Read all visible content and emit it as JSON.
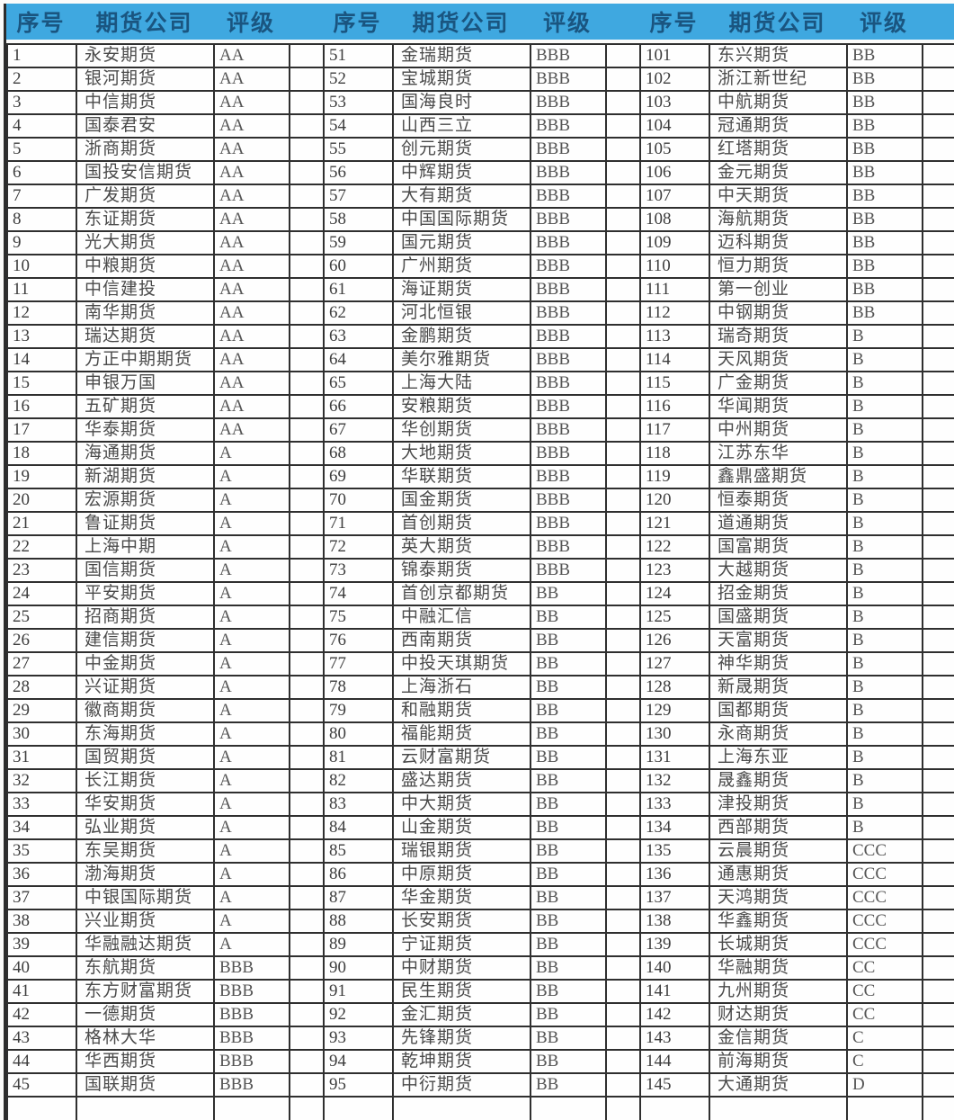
{
  "style": {
    "header_bg": "#3fa8e0",
    "header_text": "#1a5580",
    "grid_border": "#2f2f2f",
    "cell_text": "#454545"
  },
  "table": {
    "column_headers": [
      "序号",
      "期货公司",
      "评级"
    ],
    "groups": [
      {
        "rows": [
          [
            "1",
            "永安期货",
            "AA"
          ],
          [
            "2",
            "银河期货",
            "AA"
          ],
          [
            "3",
            "中信期货",
            "AA"
          ],
          [
            "4",
            "国泰君安",
            "AA"
          ],
          [
            "5",
            "浙商期货",
            "AA"
          ],
          [
            "6",
            "国投安信期货",
            "AA"
          ],
          [
            "7",
            "广发期货",
            "AA"
          ],
          [
            "8",
            "东证期货",
            "AA"
          ],
          [
            "9",
            "光大期货",
            "AA"
          ],
          [
            "10",
            "中粮期货",
            "AA"
          ],
          [
            "11",
            "中信建投",
            "AA"
          ],
          [
            "12",
            "南华期货",
            "AA"
          ],
          [
            "13",
            "瑞达期货",
            "AA"
          ],
          [
            "14",
            "方正中期期货",
            "AA"
          ],
          [
            "15",
            "申银万国",
            "AA"
          ],
          [
            "16",
            "五矿期货",
            "AA"
          ],
          [
            "17",
            "华泰期货",
            "AA"
          ],
          [
            "18",
            "海通期货",
            "A"
          ],
          [
            "19",
            "新湖期货",
            "A"
          ],
          [
            "20",
            "宏源期货",
            "A"
          ],
          [
            "21",
            "鲁证期货",
            "A"
          ],
          [
            "22",
            "上海中期",
            "A"
          ],
          [
            "23",
            "国信期货",
            "A"
          ],
          [
            "24",
            "平安期货",
            "A"
          ],
          [
            "25",
            "招商期货",
            "A"
          ],
          [
            "26",
            "建信期货",
            "A"
          ],
          [
            "27",
            "中金期货",
            "A"
          ],
          [
            "28",
            "兴证期货",
            "A"
          ],
          [
            "29",
            "徽商期货",
            "A"
          ],
          [
            "30",
            "东海期货",
            "A"
          ],
          [
            "31",
            "国贸期货",
            "A"
          ],
          [
            "32",
            "长江期货",
            "A"
          ],
          [
            "33",
            "华安期货",
            "A"
          ],
          [
            "34",
            "弘业期货",
            "A"
          ],
          [
            "35",
            "东吴期货",
            "A"
          ],
          [
            "36",
            "渤海期货",
            "A"
          ],
          [
            "37",
            "中银国际期货",
            "A"
          ],
          [
            "38",
            "兴业期货",
            "A"
          ],
          [
            "39",
            "华融融达期货",
            "A"
          ],
          [
            "40",
            "东航期货",
            "BBB"
          ],
          [
            "41",
            "东方财富期货",
            "BBB"
          ],
          [
            "42",
            "一德期货",
            "BBB"
          ],
          [
            "43",
            "格林大华",
            "BBB"
          ],
          [
            "44",
            "华西期货",
            "BBB"
          ],
          [
            "45",
            "国联期货",
            "BBB"
          ]
        ]
      },
      {
        "rows": [
          [
            "51",
            "金瑞期货",
            "BBB"
          ],
          [
            "52",
            "宝城期货",
            "BBB"
          ],
          [
            "53",
            "国海良时",
            "BBB"
          ],
          [
            "54",
            "山西三立",
            "BBB"
          ],
          [
            "55",
            "创元期货",
            "BBB"
          ],
          [
            "56",
            "中辉期货",
            "BBB"
          ],
          [
            "57",
            "大有期货",
            "BBB"
          ],
          [
            "58",
            "中国国际期货",
            "BBB"
          ],
          [
            "59",
            "国元期货",
            "BBB"
          ],
          [
            "60",
            "广州期货",
            "BBB"
          ],
          [
            "61",
            "海证期货",
            "BBB"
          ],
          [
            "62",
            "河北恒银",
            "BBB"
          ],
          [
            "63",
            "金鹏期货",
            "BBB"
          ],
          [
            "64",
            "美尔雅期货",
            "BBB"
          ],
          [
            "65",
            "上海大陆",
            "BBB"
          ],
          [
            "66",
            "安粮期货",
            "BBB"
          ],
          [
            "67",
            "华创期货",
            "BBB"
          ],
          [
            "68",
            "大地期货",
            "BBB"
          ],
          [
            "69",
            "华联期货",
            "BBB"
          ],
          [
            "70",
            "国金期货",
            "BBB"
          ],
          [
            "71",
            "首创期货",
            "BBB"
          ],
          [
            "72",
            "英大期货",
            "BBB"
          ],
          [
            "73",
            "锦泰期货",
            "BBB"
          ],
          [
            "74",
            "首创京都期货",
            "BB"
          ],
          [
            "75",
            "中融汇信",
            "BB"
          ],
          [
            "76",
            "西南期货",
            "BB"
          ],
          [
            "77",
            "中投天琪期货",
            "BB"
          ],
          [
            "78",
            "上海浙石",
            "BB"
          ],
          [
            "79",
            "和融期货",
            "BB"
          ],
          [
            "80",
            "福能期货",
            "BB"
          ],
          [
            "81",
            "云财富期货",
            "BB"
          ],
          [
            "82",
            "盛达期货",
            "BB"
          ],
          [
            "83",
            "中大期货",
            "BB"
          ],
          [
            "84",
            "山金期货",
            "BB"
          ],
          [
            "85",
            "瑞银期货",
            "BB"
          ],
          [
            "86",
            "中原期货",
            "BB"
          ],
          [
            "87",
            "华金期货",
            "BB"
          ],
          [
            "88",
            "长安期货",
            "BB"
          ],
          [
            "89",
            "宁证期货",
            "BB"
          ],
          [
            "90",
            "中财期货",
            "BB"
          ],
          [
            "91",
            "民生期货",
            "BB"
          ],
          [
            "92",
            "金汇期货",
            "BB"
          ],
          [
            "93",
            "先锋期货",
            "BB"
          ],
          [
            "94",
            "乾坤期货",
            "BB"
          ],
          [
            "95",
            "中衍期货",
            "BB"
          ]
        ]
      },
      {
        "rows": [
          [
            "101",
            "东兴期货",
            "BB"
          ],
          [
            "102",
            "浙江新世纪",
            "BB"
          ],
          [
            "103",
            "中航期货",
            "BB"
          ],
          [
            "104",
            "冠通期货",
            "BB"
          ],
          [
            "105",
            "红塔期货",
            "BB"
          ],
          [
            "106",
            "金元期货",
            "BB"
          ],
          [
            "107",
            "中天期货",
            "BB"
          ],
          [
            "108",
            "海航期货",
            "BB"
          ],
          [
            "109",
            "迈科期货",
            "BB"
          ],
          [
            "110",
            "恒力期货",
            "BB"
          ],
          [
            "111",
            "第一创业",
            "BB"
          ],
          [
            "112",
            "中钢期货",
            "BB"
          ],
          [
            "113",
            "瑞奇期货",
            "B"
          ],
          [
            "114",
            "天风期货",
            "B"
          ],
          [
            "115",
            "广金期货",
            "B"
          ],
          [
            "116",
            "华闻期货",
            "B"
          ],
          [
            "117",
            "中州期货",
            "B"
          ],
          [
            "118",
            "江苏东华",
            "B"
          ],
          [
            "119",
            "鑫鼎盛期货",
            "B"
          ],
          [
            "120",
            "恒泰期货",
            "B"
          ],
          [
            "121",
            "道通期货",
            "B"
          ],
          [
            "122",
            "国富期货",
            "B"
          ],
          [
            "123",
            "大越期货",
            "B"
          ],
          [
            "124",
            "招金期货",
            "B"
          ],
          [
            "125",
            "国盛期货",
            "B"
          ],
          [
            "126",
            "天富期货",
            "B"
          ],
          [
            "127",
            "神华期货",
            "B"
          ],
          [
            "128",
            "新晟期货",
            "B"
          ],
          [
            "129",
            "国都期货",
            "B"
          ],
          [
            "130",
            "永商期货",
            "B"
          ],
          [
            "131",
            "上海东亚",
            "B"
          ],
          [
            "132",
            "晟鑫期货",
            "B"
          ],
          [
            "133",
            "津投期货",
            "B"
          ],
          [
            "134",
            "西部期货",
            "B"
          ],
          [
            "135",
            "云晨期货",
            "CCC"
          ],
          [
            "136",
            "通惠期货",
            "CCC"
          ],
          [
            "137",
            "天鸿期货",
            "CCC"
          ],
          [
            "138",
            "华鑫期货",
            "CCC"
          ],
          [
            "139",
            "长城期货",
            "CCC"
          ],
          [
            "140",
            "华融期货",
            "CC"
          ],
          [
            "141",
            "九州期货",
            "CC"
          ],
          [
            "142",
            "财达期货",
            "CC"
          ],
          [
            "143",
            "金信期货",
            "C"
          ],
          [
            "144",
            "前海期货",
            "C"
          ],
          [
            "145",
            "大通期货",
            "D"
          ]
        ]
      }
    ]
  }
}
